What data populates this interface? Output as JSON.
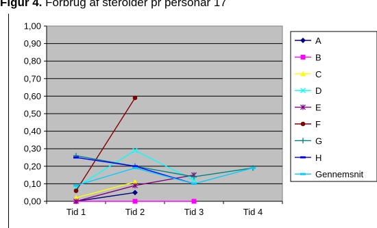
{
  "figure": {
    "title_bold": "Figur 4.",
    "title_rest": " Forbrug af steroider pr person",
    "title_tail": "år 17"
  },
  "chart_data": {
    "type": "line",
    "categories": [
      "Tid 1",
      "Tid 2",
      "Tid 3",
      "Tid 4"
    ],
    "ylim": [
      0,
      1
    ],
    "yticks": [
      "0,00",
      "0,10",
      "0,20",
      "0,30",
      "0,40",
      "0,50",
      "0,60",
      "0,70",
      "0,80",
      "0,90",
      "1,00"
    ],
    "grid": true,
    "plot_background": "#c0c0c0",
    "legend_position": "right",
    "series": [
      {
        "name": "A",
        "color": "#000080",
        "marker": "diamond",
        "values": [
          0.0,
          0.05,
          null,
          null
        ]
      },
      {
        "name": "B",
        "color": "#ff00ff",
        "marker": "square",
        "values": [
          0.0,
          0.0,
          0.0,
          null
        ]
      },
      {
        "name": "C",
        "color": "#ffff00",
        "marker": "triangle",
        "values": [
          0.02,
          0.11,
          null,
          null
        ]
      },
      {
        "name": "D",
        "color": "#00ffff",
        "marker": "x",
        "values": [
          0.08,
          0.29,
          0.12,
          null
        ]
      },
      {
        "name": "E",
        "color": "#800080",
        "marker": "star",
        "values": [
          0.0,
          0.09,
          0.15,
          null
        ]
      },
      {
        "name": "F",
        "color": "#800000",
        "marker": "circle",
        "values": [
          0.06,
          0.59,
          null,
          null
        ]
      },
      {
        "name": "G",
        "color": "#008080",
        "marker": "plus",
        "values": [
          0.26,
          0.2,
          0.14,
          0.19
        ]
      },
      {
        "name": "H",
        "color": "#0000ff",
        "marker": "bar",
        "values": [
          0.25,
          0.2,
          0.1,
          null
        ]
      },
      {
        "name": "Gennemsnit",
        "color": "#00ccff",
        "marker": "bar",
        "values": [
          0.09,
          0.19,
          0.1,
          0.19
        ]
      }
    ]
  }
}
